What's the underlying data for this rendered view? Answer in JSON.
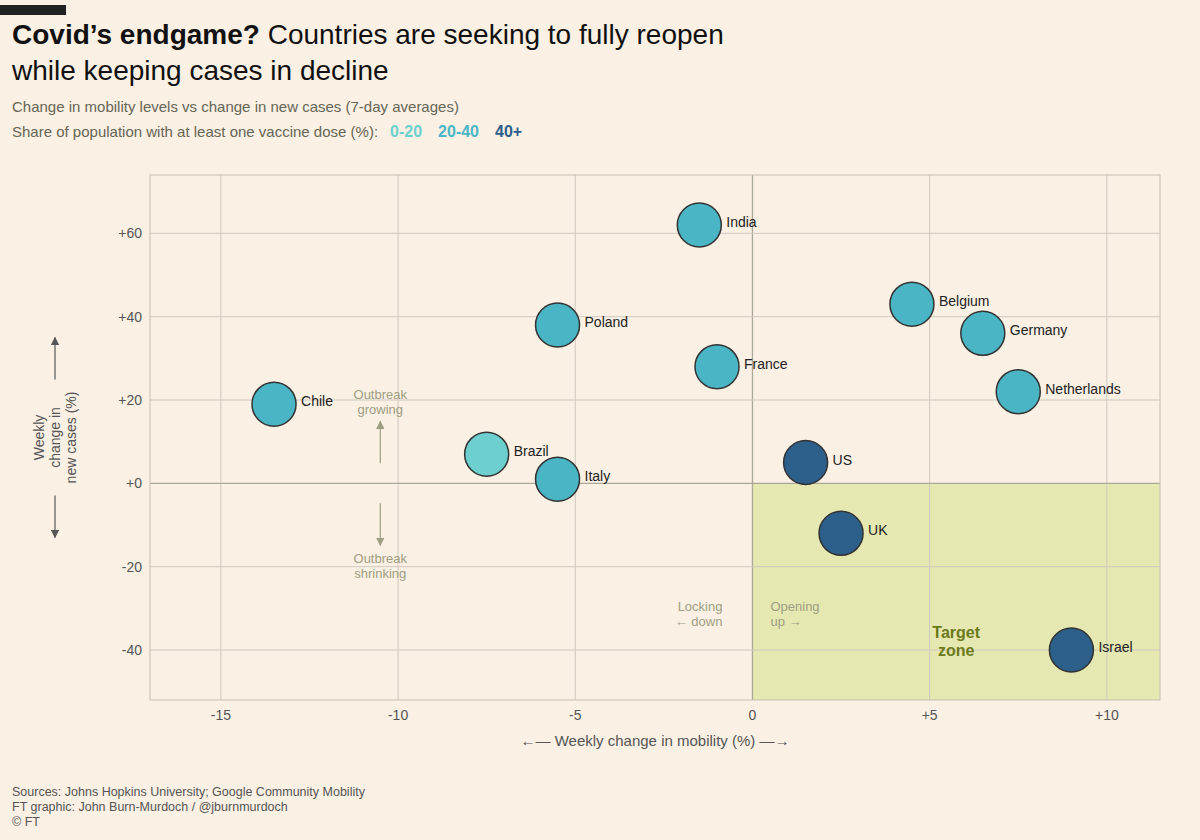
{
  "chart_data": {
    "type": "scatter",
    "title": [
      "Covid’s endgame?",
      " Countries are seeking to fully reopen",
      "while keeping cases in decline"
    ],
    "subtitle": [
      "Change in mobility levels vs change in new cases (7-day averages)",
      "Share of population with at least one vaccine dose (%):"
    ],
    "xlabel": "←— Weekly change in mobility (%) —→",
    "ylabel": "Weekly\nchange in\nnew cases (%)",
    "source": "Sources: Johns Hopkins University; Google Community Mobility\nFT graphic: John Burn-Murdoch / @jburnmurdoch\n© FT",
    "xlim": [
      -17,
      11.5
    ],
    "ylim": [
      -52,
      74
    ],
    "xticks": [
      -15,
      -10,
      -5,
      0,
      {
        "value": 5,
        "label": "+5"
      },
      {
        "value": 10,
        "label": "+10"
      }
    ],
    "yticks": [
      -40,
      -20,
      {
        "value": 0,
        "label": "+0"
      },
      {
        "value": 20,
        "label": "+20"
      },
      {
        "value": 40,
        "label": "+40"
      },
      {
        "value": 60,
        "label": "+60"
      }
    ],
    "grid": true,
    "legend": "top-left",
    "series": [
      {
        "name": "0-20",
        "color": "#6ecfcf",
        "x": [
          -7.5
        ],
        "values": [
          7
        ],
        "labels": [
          "Brazil"
        ]
      },
      {
        "name": "20-40",
        "color": "#4ab5c4",
        "x": [
          -1.5,
          -5.5,
          -1.0,
          4.5,
          6.5,
          7.5,
          -13.5,
          -5.5
        ],
        "values": [
          62,
          38,
          28,
          43,
          36,
          22,
          19,
          1
        ],
        "labels": [
          "India",
          "Poland",
          "France",
          "Belgium",
          "Germany",
          "Netherlands",
          "Chile",
          "Italy"
        ]
      },
      {
        "name": "40+",
        "color": "#2c5f8a",
        "x": [
          1.5,
          2.5,
          9.0
        ],
        "values": [
          5,
          -12,
          -40
        ],
        "labels": [
          "US",
          "UK",
          "Israel"
        ]
      }
    ],
    "annotations": [
      {
        "text": "Outbreak\ngrowing",
        "color": "#9e9e83"
      },
      {
        "text": "Outbreak\nshrinking",
        "color": "#9e9e83"
      },
      {
        "text": "Locking\n← down",
        "color": "#9e9e83"
      },
      {
        "text": "Opening\nup →",
        "color": "#9e9e83"
      },
      {
        "text": "Target\nzone",
        "color": "#6b7a1a"
      }
    ]
  }
}
